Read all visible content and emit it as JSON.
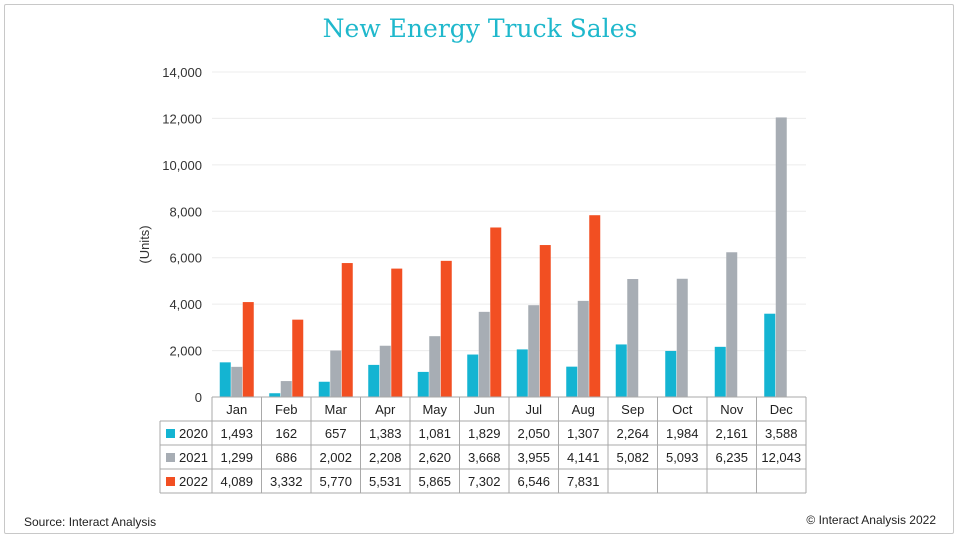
{
  "title": "New Energy Truck Sales",
  "source": "Source: Interact Analysis",
  "copyright": "© Interact Analysis 2022",
  "chart_data": {
    "type": "bar",
    "title": "New Energy Truck Sales",
    "xlabel": "",
    "ylabel": "(Units)",
    "ylim": [
      0,
      14000
    ],
    "yticks": [
      0,
      2000,
      4000,
      6000,
      8000,
      10000,
      12000,
      14000
    ],
    "ytick_labels": [
      "0",
      "2,000",
      "4,000",
      "6,000",
      "8,000",
      "10,000",
      "12,000",
      "14,000"
    ],
    "grid": true,
    "legend": "data-table-rows",
    "categories": [
      "Jan",
      "Feb",
      "Mar",
      "Apr",
      "May",
      "Jun",
      "Jul",
      "Aug",
      "Sep",
      "Oct",
      "Nov",
      "Dec"
    ],
    "series": [
      {
        "name": "2020",
        "color": "#14b4d2",
        "values": [
          1493,
          162,
          657,
          1383,
          1081,
          1829,
          2050,
          1307,
          2264,
          1984,
          2161,
          3588
        ],
        "labels": [
          "1,493",
          "162",
          "657",
          "1,383",
          "1,081",
          "1,829",
          "2,050",
          "1,307",
          "2,264",
          "1,984",
          "2,161",
          "3,588"
        ]
      },
      {
        "name": "2021",
        "color": "#a7adb4",
        "values": [
          1299,
          686,
          2002,
          2208,
          2620,
          3668,
          3955,
          4141,
          5082,
          5093,
          6235,
          12043
        ],
        "labels": [
          "1,299",
          "686",
          "2,002",
          "2,208",
          "2,620",
          "3,668",
          "3,955",
          "4,141",
          "5,082",
          "5,093",
          "6,235",
          "12,043"
        ]
      },
      {
        "name": "2022",
        "color": "#f24f22",
        "values": [
          4089,
          3332,
          5770,
          5531,
          5865,
          7302,
          6546,
          7831,
          null,
          null,
          null,
          null
        ],
        "labels": [
          "4,089",
          "3,332",
          "5,770",
          "5,531",
          "5,865",
          "7,302",
          "6,546",
          "7,831",
          "",
          "",
          "",
          ""
        ]
      }
    ]
  }
}
